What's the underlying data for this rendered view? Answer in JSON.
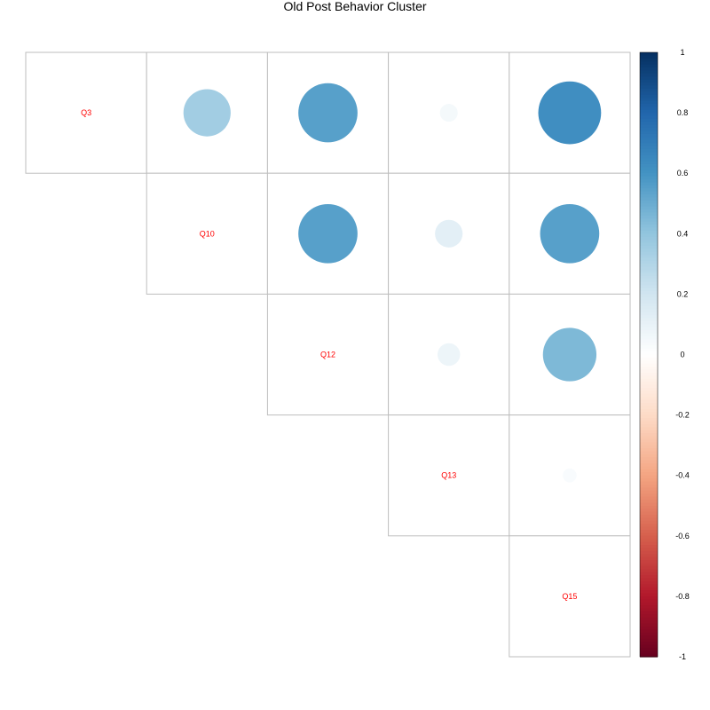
{
  "chart_data": {
    "type": "heatmap",
    "subtype": "correlation-upper-circle",
    "title": "Old Post Behavior Cluster",
    "variables": [
      "Q3",
      "Q10",
      "Q12",
      "Q13",
      "Q15"
    ],
    "correlations": [
      [
        1.0,
        0.35,
        0.55,
        0.05,
        0.62
      ],
      [
        0.35,
        1.0,
        0.55,
        0.12,
        0.55
      ],
      [
        0.55,
        0.55,
        1.0,
        0.08,
        0.45
      ],
      [
        0.05,
        0.12,
        0.08,
        1.0,
        0.03
      ],
      [
        0.62,
        0.55,
        0.45,
        0.03,
        1.0
      ]
    ],
    "diagonal_label_color": "#ff0000",
    "grid_color": "#bebebe",
    "colorbar": {
      "range": [
        -1,
        1
      ],
      "ticks": [
        "1",
        "0.8",
        "0.6",
        "0.4",
        "0.2",
        "0",
        "-0.2",
        "-0.4",
        "-0.6",
        "-0.8",
        "-1"
      ],
      "palette": [
        "#67001F",
        "#B2182B",
        "#D6604D",
        "#F4A582",
        "#FDDBC7",
        "#FFFFFF",
        "#D1E5F0",
        "#92C5DE",
        "#4393C3",
        "#2166AC",
        "#053061"
      ]
    }
  }
}
